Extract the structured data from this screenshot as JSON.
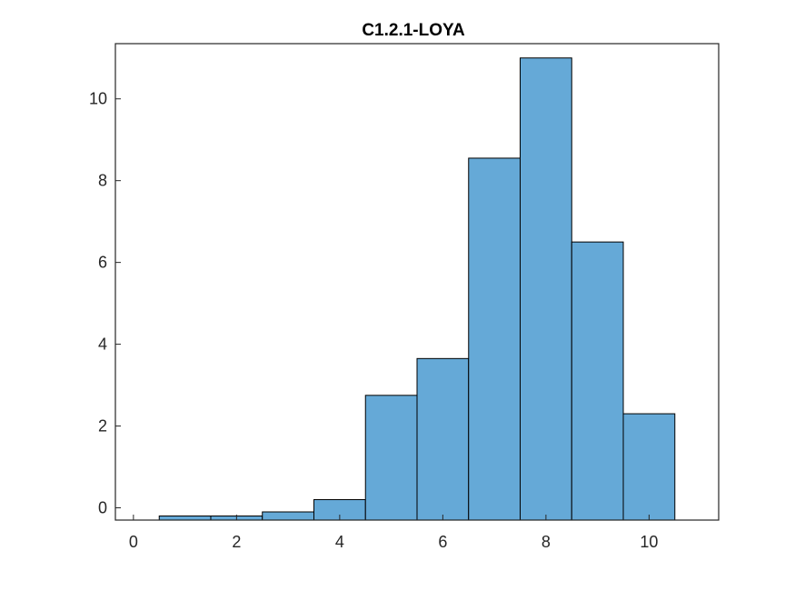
{
  "chart_data": {
    "type": "bar",
    "title": "C1.2.1-LOYA",
    "xlabel": "",
    "ylabel": "",
    "xlim": [
      -0.35,
      11.35
    ],
    "ylim": [
      -0.3,
      11.35
    ],
    "xticks": [
      0,
      2,
      4,
      6,
      8,
      10
    ],
    "yticks": [
      0,
      2,
      4,
      6,
      8,
      10
    ],
    "bin_width": 1,
    "bins": [
      {
        "center": 1,
        "value": -0.2
      },
      {
        "center": 2,
        "value": -0.2
      },
      {
        "center": 3,
        "value": -0.1
      },
      {
        "center": 4,
        "value": 0.2
      },
      {
        "center": 5,
        "value": 2.75
      },
      {
        "center": 6,
        "value": 3.65
      },
      {
        "center": 7,
        "value": 8.55
      },
      {
        "center": 8,
        "value": 11.0
      },
      {
        "center": 9,
        "value": 6.5
      },
      {
        "center": 10,
        "value": 2.3
      }
    ],
    "grid": false,
    "box": true,
    "colors": {
      "bar": "#65a9d7",
      "edge": "#000000",
      "axes": "#262626"
    }
  }
}
